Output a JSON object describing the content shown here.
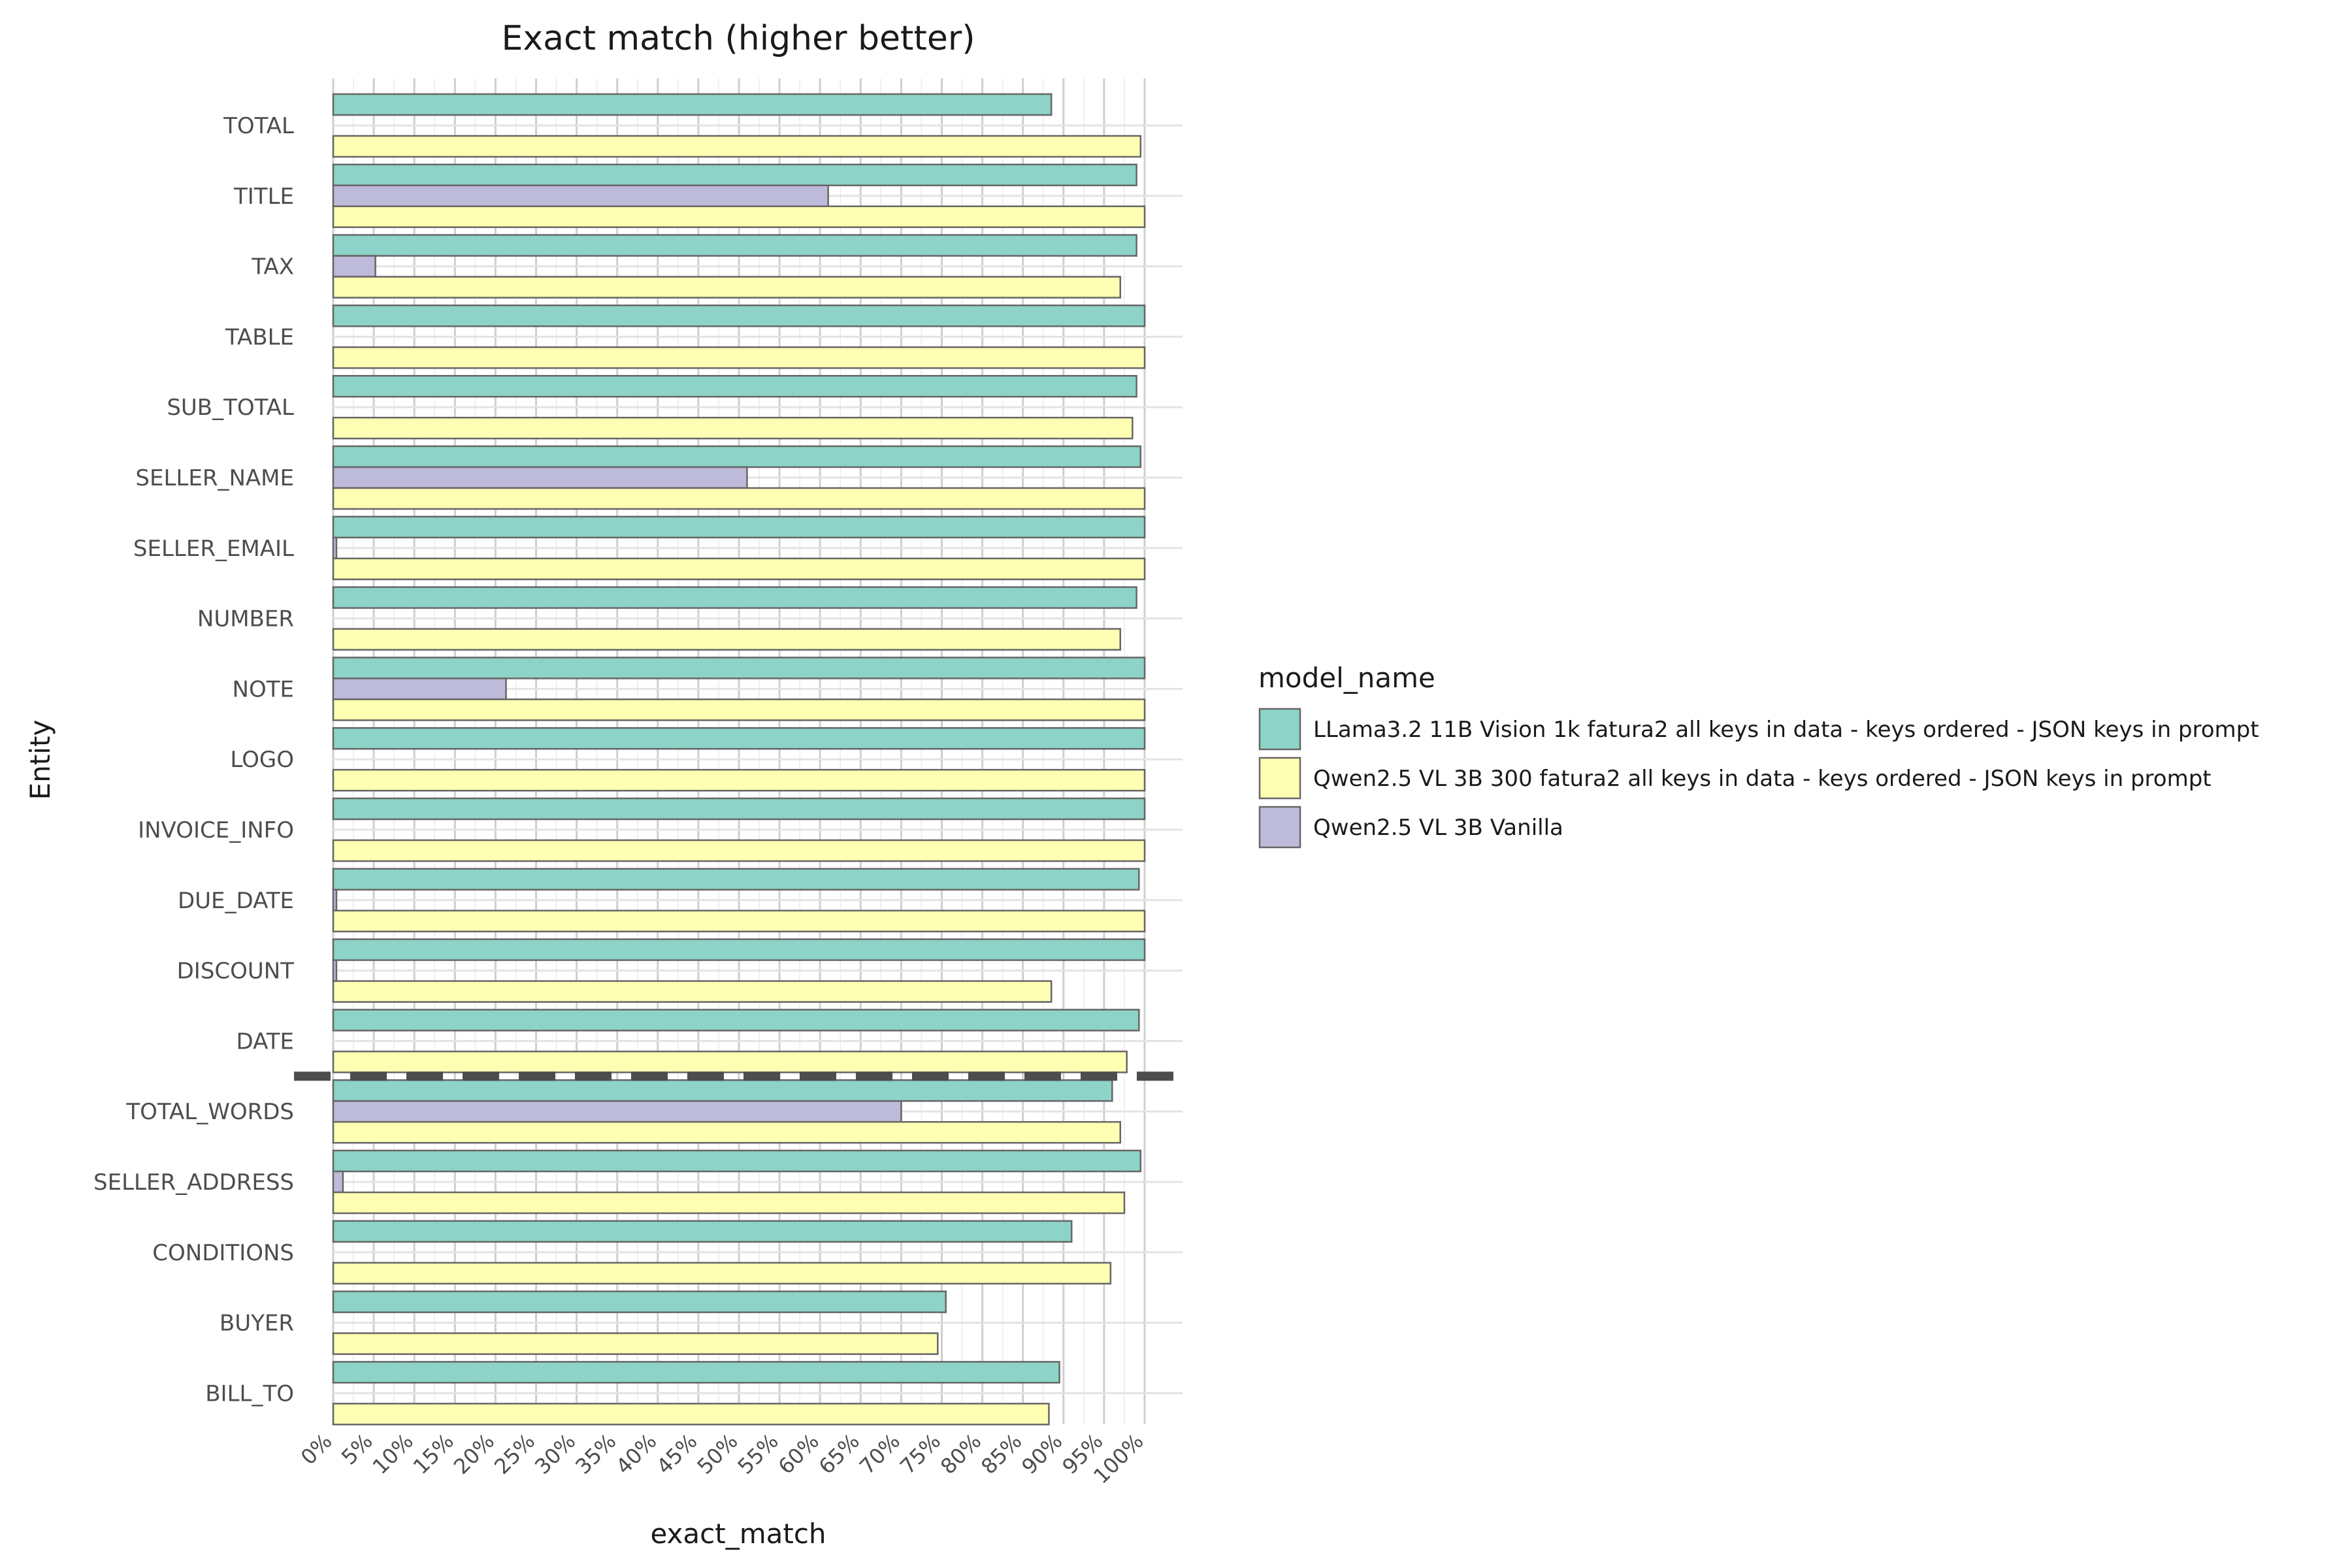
{
  "chart_data": {
    "type": "bar",
    "orientation": "horizontal",
    "title": "Exact match (higher better)",
    "xlabel": "exact_match",
    "ylabel": "Entity",
    "xlim": [
      0,
      1
    ],
    "x_ticks": [
      0,
      0.05,
      0.1,
      0.15,
      0.2,
      0.25,
      0.3,
      0.35,
      0.4,
      0.45,
      0.5,
      0.55,
      0.6,
      0.65,
      0.7,
      0.75,
      0.8,
      0.85,
      0.9,
      0.95,
      1.0
    ],
    "x_tick_labels": [
      "0%",
      "5%",
      "10%",
      "15%",
      "20%",
      "25%",
      "30%",
      "35%",
      "40%",
      "45%",
      "50%",
      "55%",
      "60%",
      "65%",
      "70%",
      "75%",
      "80%",
      "85%",
      "90%",
      "95%",
      "100%"
    ],
    "categories": [
      "TOTAL",
      "TITLE",
      "TAX",
      "TABLE",
      "SUB_TOTAL",
      "SELLER_NAME",
      "SELLER_EMAIL",
      "NUMBER",
      "NOTE",
      "LOGO",
      "INVOICE_INFO",
      "DUE_DATE",
      "DISCOUNT",
      "DATE",
      "TOTAL_WORDS",
      "SELLER_ADDRESS",
      "CONDITIONS",
      "BUYER",
      "BILL_TO"
    ],
    "series": [
      {
        "name": "LLama3.2 11B Vision 1k fatura2 all keys in data - keys ordered - JSON keys in prompt",
        "color": "#8dd3c7",
        "values": [
          0.885,
          0.99,
          0.99,
          1.0,
          0.99,
          0.995,
          1.0,
          0.99,
          1.0,
          1.0,
          1.0,
          0.993,
          1.0,
          0.993,
          0.96,
          0.995,
          0.91,
          0.755,
          0.895
        ]
      },
      {
        "name": "Qwen2.5 VL 3B Vanilla",
        "color": "#bebada",
        "values": [
          0,
          0.61,
          0.052,
          0,
          0,
          0.51,
          0.004,
          0,
          0.213,
          0,
          0,
          0.004,
          0.004,
          0,
          0.7,
          0.012,
          0,
          0,
          0
        ]
      },
      {
        "name": "Qwen2.5 VL 3B 300 fatura2 all keys in data - keys ordered - JSON keys in prompt",
        "color": "#ffffb3",
        "values": [
          0.995,
          1.0,
          0.97,
          1.0,
          0.985,
          1.0,
          1.0,
          0.97,
          1.0,
          1.0,
          1.0,
          1.0,
          0.885,
          0.978,
          0.97,
          0.975,
          0.958,
          0.745,
          0.882
        ]
      }
    ],
    "legend": {
      "title": "model_name",
      "position": "right",
      "entries": [
        {
          "label": "LLama3.2 11B Vision 1k fatura2 all keys in data - keys ordered - JSON keys in prompt",
          "color": "#8dd3c7"
        },
        {
          "label": "Qwen2.5 VL 3B 300 fatura2 all keys in data - keys ordered - JSON keys in prompt",
          "color": "#ffffb3"
        },
        {
          "label": "Qwen2.5 VL 3B Vanilla",
          "color": "#bebada"
        }
      ]
    },
    "reference_line": {
      "style": "dashed",
      "between": [
        "DATE",
        "TOTAL_WORDS"
      ],
      "color": "#4d4d4d"
    },
    "grid": true
  }
}
